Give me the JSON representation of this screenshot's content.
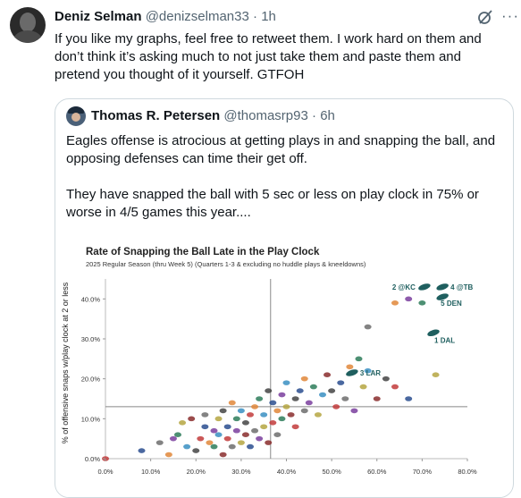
{
  "tweet": {
    "author_name": "Deniz Selman",
    "handle": "@denizselman33",
    "time": "1h",
    "text": "If you like my graphs, feel free to retweet them. I work hard on them and don’t think it’s asking much to not just take them and paste them and pretend you thought of it yourself. GTFOH"
  },
  "quote": {
    "author_name": "Thomas R. Petersen",
    "handle": "@thomasrp93",
    "time": "6h",
    "paragraph_1": "Eagles offense is atrocious at getting plays in and snapping the ball, and opposing defenses can time their get off.",
    "paragraph_2": "They have snapped the ball with 5 sec or less on play clock in 75% or worse in 4/5 games this year...."
  },
  "icons": {
    "grok": "grok-icon",
    "more": "more-icon"
  },
  "chart_data": {
    "type": "scatter",
    "title": "Rate of Snapping the Ball Late in the Play Clock",
    "subtitle": "2025 Regular Season (thru Week 5) (Quarters 1-3 & excluding no huddle plays & kneeldowns)",
    "ylabel": "% of offensive snaps w/play clock at 2 or less",
    "xlabel": "",
    "xlim": [
      0,
      80
    ],
    "ylim": [
      0,
      45
    ],
    "x_ticks": [
      "0.0%",
      "10.0%",
      "20.0%",
      "30.0%",
      "40.0%",
      "50.0%",
      "60.0%",
      "70.0%",
      "80.0%"
    ],
    "y_ticks": [
      "0.0%",
      "10.0%",
      "20.0%",
      "30.0%",
      "40.0%"
    ],
    "reference_lines": {
      "x": 36.5,
      "y": 13
    },
    "highlight_color": "#1f5f5f",
    "highlighted": [
      {
        "label": "2 @KC",
        "x": 70.5,
        "y": 43
      },
      {
        "label": "4 @TB",
        "x": 74.5,
        "y": 43
      },
      {
        "label": "5 DEN",
        "x": 74.5,
        "y": 40.5
      },
      {
        "label": "1 DAL",
        "x": 72.5,
        "y": 31.5
      },
      {
        "label": "3 LAR",
        "x": 54.5,
        "y": 21.5
      }
    ],
    "points": [
      {
        "x": 0,
        "y": 0
      },
      {
        "x": 8,
        "y": 2
      },
      {
        "x": 12,
        "y": 4
      },
      {
        "x": 14,
        "y": 1
      },
      {
        "x": 15,
        "y": 5
      },
      {
        "x": 16,
        "y": 6
      },
      {
        "x": 17,
        "y": 9
      },
      {
        "x": 18,
        "y": 3
      },
      {
        "x": 19,
        "y": 10
      },
      {
        "x": 20,
        "y": 2
      },
      {
        "x": 21,
        "y": 5
      },
      {
        "x": 22,
        "y": 8
      },
      {
        "x": 22,
        "y": 11
      },
      {
        "x": 23,
        "y": 4
      },
      {
        "x": 24,
        "y": 7
      },
      {
        "x": 24,
        "y": 3
      },
      {
        "x": 25,
        "y": 10
      },
      {
        "x": 25,
        "y": 6
      },
      {
        "x": 26,
        "y": 1
      },
      {
        "x": 26,
        "y": 12
      },
      {
        "x": 27,
        "y": 5
      },
      {
        "x": 27,
        "y": 8
      },
      {
        "x": 28,
        "y": 3
      },
      {
        "x": 28,
        "y": 14
      },
      {
        "x": 29,
        "y": 7
      },
      {
        "x": 29,
        "y": 10
      },
      {
        "x": 30,
        "y": 4
      },
      {
        "x": 30,
        "y": 12
      },
      {
        "x": 31,
        "y": 6
      },
      {
        "x": 31,
        "y": 9
      },
      {
        "x": 32,
        "y": 11
      },
      {
        "x": 32,
        "y": 3
      },
      {
        "x": 33,
        "y": 7
      },
      {
        "x": 33,
        "y": 13
      },
      {
        "x": 34,
        "y": 5
      },
      {
        "x": 34,
        "y": 15
      },
      {
        "x": 35,
        "y": 8
      },
      {
        "x": 35,
        "y": 11
      },
      {
        "x": 36,
        "y": 4
      },
      {
        "x": 36,
        "y": 17
      },
      {
        "x": 37,
        "y": 9
      },
      {
        "x": 37,
        "y": 14
      },
      {
        "x": 38,
        "y": 6
      },
      {
        "x": 38,
        "y": 12
      },
      {
        "x": 39,
        "y": 16
      },
      {
        "x": 39,
        "y": 10
      },
      {
        "x": 40,
        "y": 13
      },
      {
        "x": 40,
        "y": 19
      },
      {
        "x": 41,
        "y": 11
      },
      {
        "x": 42,
        "y": 15
      },
      {
        "x": 42,
        "y": 8
      },
      {
        "x": 43,
        "y": 17
      },
      {
        "x": 44,
        "y": 12
      },
      {
        "x": 44,
        "y": 20
      },
      {
        "x": 45,
        "y": 14
      },
      {
        "x": 46,
        "y": 18
      },
      {
        "x": 47,
        "y": 11
      },
      {
        "x": 48,
        "y": 16
      },
      {
        "x": 49,
        "y": 21
      },
      {
        "x": 50,
        "y": 17
      },
      {
        "x": 51,
        "y": 13
      },
      {
        "x": 52,
        "y": 19
      },
      {
        "x": 53,
        "y": 15
      },
      {
        "x": 54,
        "y": 23
      },
      {
        "x": 55,
        "y": 12
      },
      {
        "x": 56,
        "y": 25
      },
      {
        "x": 57,
        "y": 18
      },
      {
        "x": 58,
        "y": 22
      },
      {
        "x": 60,
        "y": 15
      },
      {
        "x": 62,
        "y": 20
      },
      {
        "x": 64,
        "y": 18
      },
      {
        "x": 67,
        "y": 15
      },
      {
        "x": 58,
        "y": 33
      },
      {
        "x": 64,
        "y": 39
      },
      {
        "x": 67,
        "y": 40
      },
      {
        "x": 70,
        "y": 39
      },
      {
        "x": 73,
        "y": 21
      }
    ]
  }
}
